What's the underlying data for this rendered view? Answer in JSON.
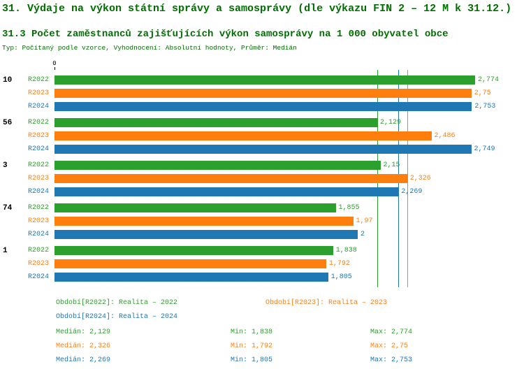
{
  "header": {
    "title": "31. Výdaje na výkon státní správy a samosprávy (dle výkazu FIN 2 – 12 M k 31.12.)",
    "subtitle": "31.3 Počet zaměstnanců zajišťujících výkon samosprávy na 1 000 obyvatel obce",
    "meta": "Typ: Počítaný podle vzorce, Vyhodnocení: Absolutní hodnoty, Průměr: Medián"
  },
  "colors": {
    "heading": "#006e00",
    "R2022": "#2ca02c",
    "R2023": "#ff7f0e",
    "R2024": "#1f77b4",
    "axis": "#000000"
  },
  "chart_data": {
    "type": "bar",
    "orientation": "horizontal",
    "title": "31.3 Počet zaměstnanců zajišťujících výkon samosprávy na 1 000 obyvatel obce",
    "axis": {
      "zero_label": "0",
      "min": 0,
      "max": 2.8,
      "grid": false
    },
    "series_names": [
      "R2022",
      "R2023",
      "R2024"
    ],
    "groups": [
      {
        "label": "10",
        "values": [
          2.774,
          2.75,
          2.753
        ],
        "value_labels": [
          "2,774",
          "2,75",
          "2,753"
        ]
      },
      {
        "label": "56",
        "values": [
          2.129,
          2.486,
          2.749
        ],
        "value_labels": [
          "2,129",
          "2,486",
          "2,749"
        ]
      },
      {
        "label": "3",
        "values": [
          2.15,
          2.326,
          2.269
        ],
        "value_labels": [
          "2,15",
          "2,326",
          "2,269"
        ]
      },
      {
        "label": "74",
        "values": [
          1.855,
          1.97,
          2
        ],
        "value_labels": [
          "1,855",
          "1,97",
          "2"
        ]
      },
      {
        "label": "1",
        "values": [
          1.838,
          1.792,
          1.805
        ],
        "value_labels": [
          "1,838",
          "1,792",
          "1,805"
        ]
      }
    ],
    "median_lines": [
      {
        "series": "R2022",
        "value": 2.129
      },
      {
        "series": "R2023",
        "value": 2.326
      },
      {
        "series": "R2024",
        "value": 2.269
      }
    ]
  },
  "legend": [
    {
      "series": "R2022",
      "label": "Období[R2022]: Realita – 2022"
    },
    {
      "series": "R2023",
      "label": "Období[R2023]: Realita – 2023"
    },
    {
      "series": "R2024",
      "label": "Období[R2024]: Realita – 2024"
    }
  ],
  "stats": [
    {
      "series": "R2022",
      "median": "Medián: 2,129",
      "min": "Min: 1,838",
      "max": "Max: 2,774"
    },
    {
      "series": "R2023",
      "median": "Medián: 2,326",
      "min": "Min: 1,792",
      "max": "Max: 2,75"
    },
    {
      "series": "R2024",
      "median": "Medián: 2,269",
      "min": "Min: 1,805",
      "max": "Max: 2,753"
    }
  ]
}
